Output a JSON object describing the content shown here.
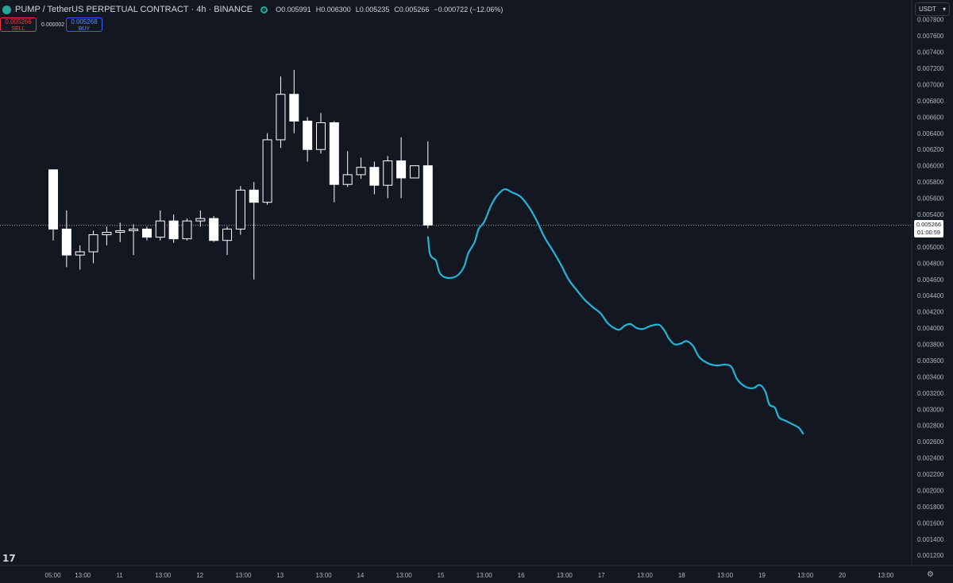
{
  "header": {
    "title": "PUMP / TetherUS PERPETUAL CONTRACT · 4h · BINANCE",
    "ohlc": [
      {
        "key": "O",
        "value": "0.005991"
      },
      {
        "key": "H",
        "value": "0.006300"
      },
      {
        "key": "L",
        "value": "0.005235"
      },
      {
        "key": "C",
        "value": "0.005266"
      }
    ],
    "change": "−0.000722 (−12.06%)"
  },
  "trade": {
    "sell_price": "0.005266",
    "sell_label": "SELL",
    "spread": "0.000002",
    "buy_price": "0.005268",
    "buy_label": "BUY"
  },
  "currency": "USDT",
  "price_label": {
    "price": "0.005266",
    "countdown": "01:00:59"
  },
  "colors": {
    "background": "#131722",
    "candle": "#ffffff",
    "projection": "#22b5d8",
    "text": "#d1d4dc",
    "axis_line": "#2a2e39"
  },
  "icons": {
    "logo": "pump-logo-icon",
    "status": "market-status-icon",
    "tradingview": "tradingview-logo-icon",
    "settings": "gear-icon",
    "dropdown": "chevron-down-icon"
  },
  "chart_data": {
    "type": "candlestick",
    "y_ticks": [
      "0.007800",
      "0.007600",
      "0.007400",
      "0.007200",
      "0.007000",
      "0.006800",
      "0.006600",
      "0.006400",
      "0.006200",
      "0.006000",
      "0.005800",
      "0.005600",
      "0.005400",
      "0.005200",
      "0.005000",
      "0.004800",
      "0.004600",
      "0.004400",
      "0.004200",
      "0.004000",
      "0.003800",
      "0.003600",
      "0.003400",
      "0.003200",
      "0.003000",
      "0.002800",
      "0.002600",
      "0.002400",
      "0.002200",
      "0.002000",
      "0.001800",
      "0.001600",
      "0.001400",
      "0.001200"
    ],
    "x_ticks": [
      "05:00",
      "13:00",
      "11",
      "13:00",
      "12",
      "13:00",
      "13",
      "13:00",
      "14",
      "13:00",
      "15",
      "13:00",
      "16",
      "13:00",
      "17",
      "13:00",
      "18",
      "13:00",
      "19",
      "13:00",
      "20",
      "13:00"
    ],
    "current_price": 0.005266,
    "candles": [
      [
        0.00595,
        0.00595,
        0.00508,
        0.00522
      ],
      [
        0.00522,
        0.00545,
        0.00475,
        0.0049
      ],
      [
        0.0049,
        0.00502,
        0.00472,
        0.00494
      ],
      [
        0.00494,
        0.0052,
        0.0048,
        0.00515
      ],
      [
        0.00515,
        0.00525,
        0.00502,
        0.00518
      ],
      [
        0.00518,
        0.0053,
        0.00506,
        0.0052
      ],
      [
        0.0052,
        0.00528,
        0.0049,
        0.00522
      ],
      [
        0.00522,
        0.00525,
        0.00508,
        0.00512
      ],
      [
        0.00512,
        0.00545,
        0.00508,
        0.00532
      ],
      [
        0.00532,
        0.0054,
        0.00505,
        0.0051
      ],
      [
        0.0051,
        0.00535,
        0.00508,
        0.00532
      ],
      [
        0.00532,
        0.00545,
        0.00525,
        0.00535
      ],
      [
        0.00535,
        0.00538,
        0.00506,
        0.00508
      ],
      [
        0.00508,
        0.00525,
        0.0049,
        0.00522
      ],
      [
        0.00522,
        0.00575,
        0.00515,
        0.0057
      ],
      [
        0.0057,
        0.0058,
        0.0046,
        0.00555
      ],
      [
        0.00555,
        0.0064,
        0.00552,
        0.00632
      ],
      [
        0.00632,
        0.0071,
        0.00622,
        0.00688
      ],
      [
        0.00688,
        0.00718,
        0.0064,
        0.00655
      ],
      [
        0.00655,
        0.0066,
        0.00605,
        0.0062
      ],
      [
        0.0062,
        0.00665,
        0.00615,
        0.00653
      ],
      [
        0.00653,
        0.00655,
        0.00555,
        0.00577
      ],
      [
        0.00577,
        0.00618,
        0.00574,
        0.00589
      ],
      [
        0.00589,
        0.0061,
        0.00584,
        0.00598
      ],
      [
        0.00598,
        0.00605,
        0.00565,
        0.00576
      ],
      [
        0.00576,
        0.00612,
        0.0056,
        0.00606
      ],
      [
        0.00606,
        0.00635,
        0.0056,
        0.00585
      ],
      [
        0.00585,
        0.006,
        0.00585,
        0.006
      ],
      [
        0.006,
        0.0063,
        0.00523,
        0.00527
      ]
    ],
    "projection": [
      [
        15.0,
        0.00512
      ],
      [
        15.02,
        0.00493
      ],
      [
        15.05,
        0.00487
      ],
      [
        15.1,
        0.00483
      ],
      [
        15.14,
        0.00469
      ],
      [
        15.2,
        0.00463
      ],
      [
        15.3,
        0.00462
      ],
      [
        15.38,
        0.00466
      ],
      [
        15.45,
        0.00476
      ],
      [
        15.5,
        0.00492
      ],
      [
        15.58,
        0.00506
      ],
      [
        15.63,
        0.00522
      ],
      [
        15.7,
        0.00531
      ],
      [
        15.78,
        0.0055
      ],
      [
        15.85,
        0.00562
      ],
      [
        15.95,
        0.00571
      ],
      [
        16.05,
        0.00567
      ],
      [
        16.15,
        0.00562
      ],
      [
        16.25,
        0.0055
      ],
      [
        16.35,
        0.00533
      ],
      [
        16.45,
        0.00512
      ],
      [
        16.55,
        0.00496
      ],
      [
        16.65,
        0.00479
      ],
      [
        16.75,
        0.0046
      ],
      [
        16.85,
        0.00447
      ],
      [
        16.95,
        0.00435
      ],
      [
        17.05,
        0.00426
      ],
      [
        17.15,
        0.00418
      ],
      [
        17.23,
        0.00407
      ],
      [
        17.3,
        0.00401
      ],
      [
        17.38,
        0.00398
      ],
      [
        17.45,
        0.00403
      ],
      [
        17.52,
        0.00405
      ],
      [
        17.6,
        0.004
      ],
      [
        17.68,
        0.00399
      ],
      [
        17.78,
        0.00403
      ],
      [
        17.88,
        0.00404
      ],
      [
        17.95,
        0.00396
      ],
      [
        18.0,
        0.00387
      ],
      [
        18.07,
        0.0038
      ],
      [
        18.15,
        0.00381
      ],
      [
        18.22,
        0.00384
      ],
      [
        18.3,
        0.00378
      ],
      [
        18.38,
        0.00364
      ],
      [
        18.5,
        0.00356
      ],
      [
        18.6,
        0.00354
      ],
      [
        18.7,
        0.00355
      ],
      [
        18.78,
        0.00352
      ],
      [
        18.85,
        0.00337
      ],
      [
        18.95,
        0.00328
      ],
      [
        19.05,
        0.00326
      ],
      [
        19.13,
        0.0033
      ],
      [
        19.2,
        0.00322
      ],
      [
        19.25,
        0.00306
      ],
      [
        19.32,
        0.00302
      ],
      [
        19.37,
        0.0029
      ],
      [
        19.45,
        0.00286
      ],
      [
        19.55,
        0.00281
      ],
      [
        19.62,
        0.00277
      ],
      [
        19.67,
        0.0027
      ]
    ]
  }
}
